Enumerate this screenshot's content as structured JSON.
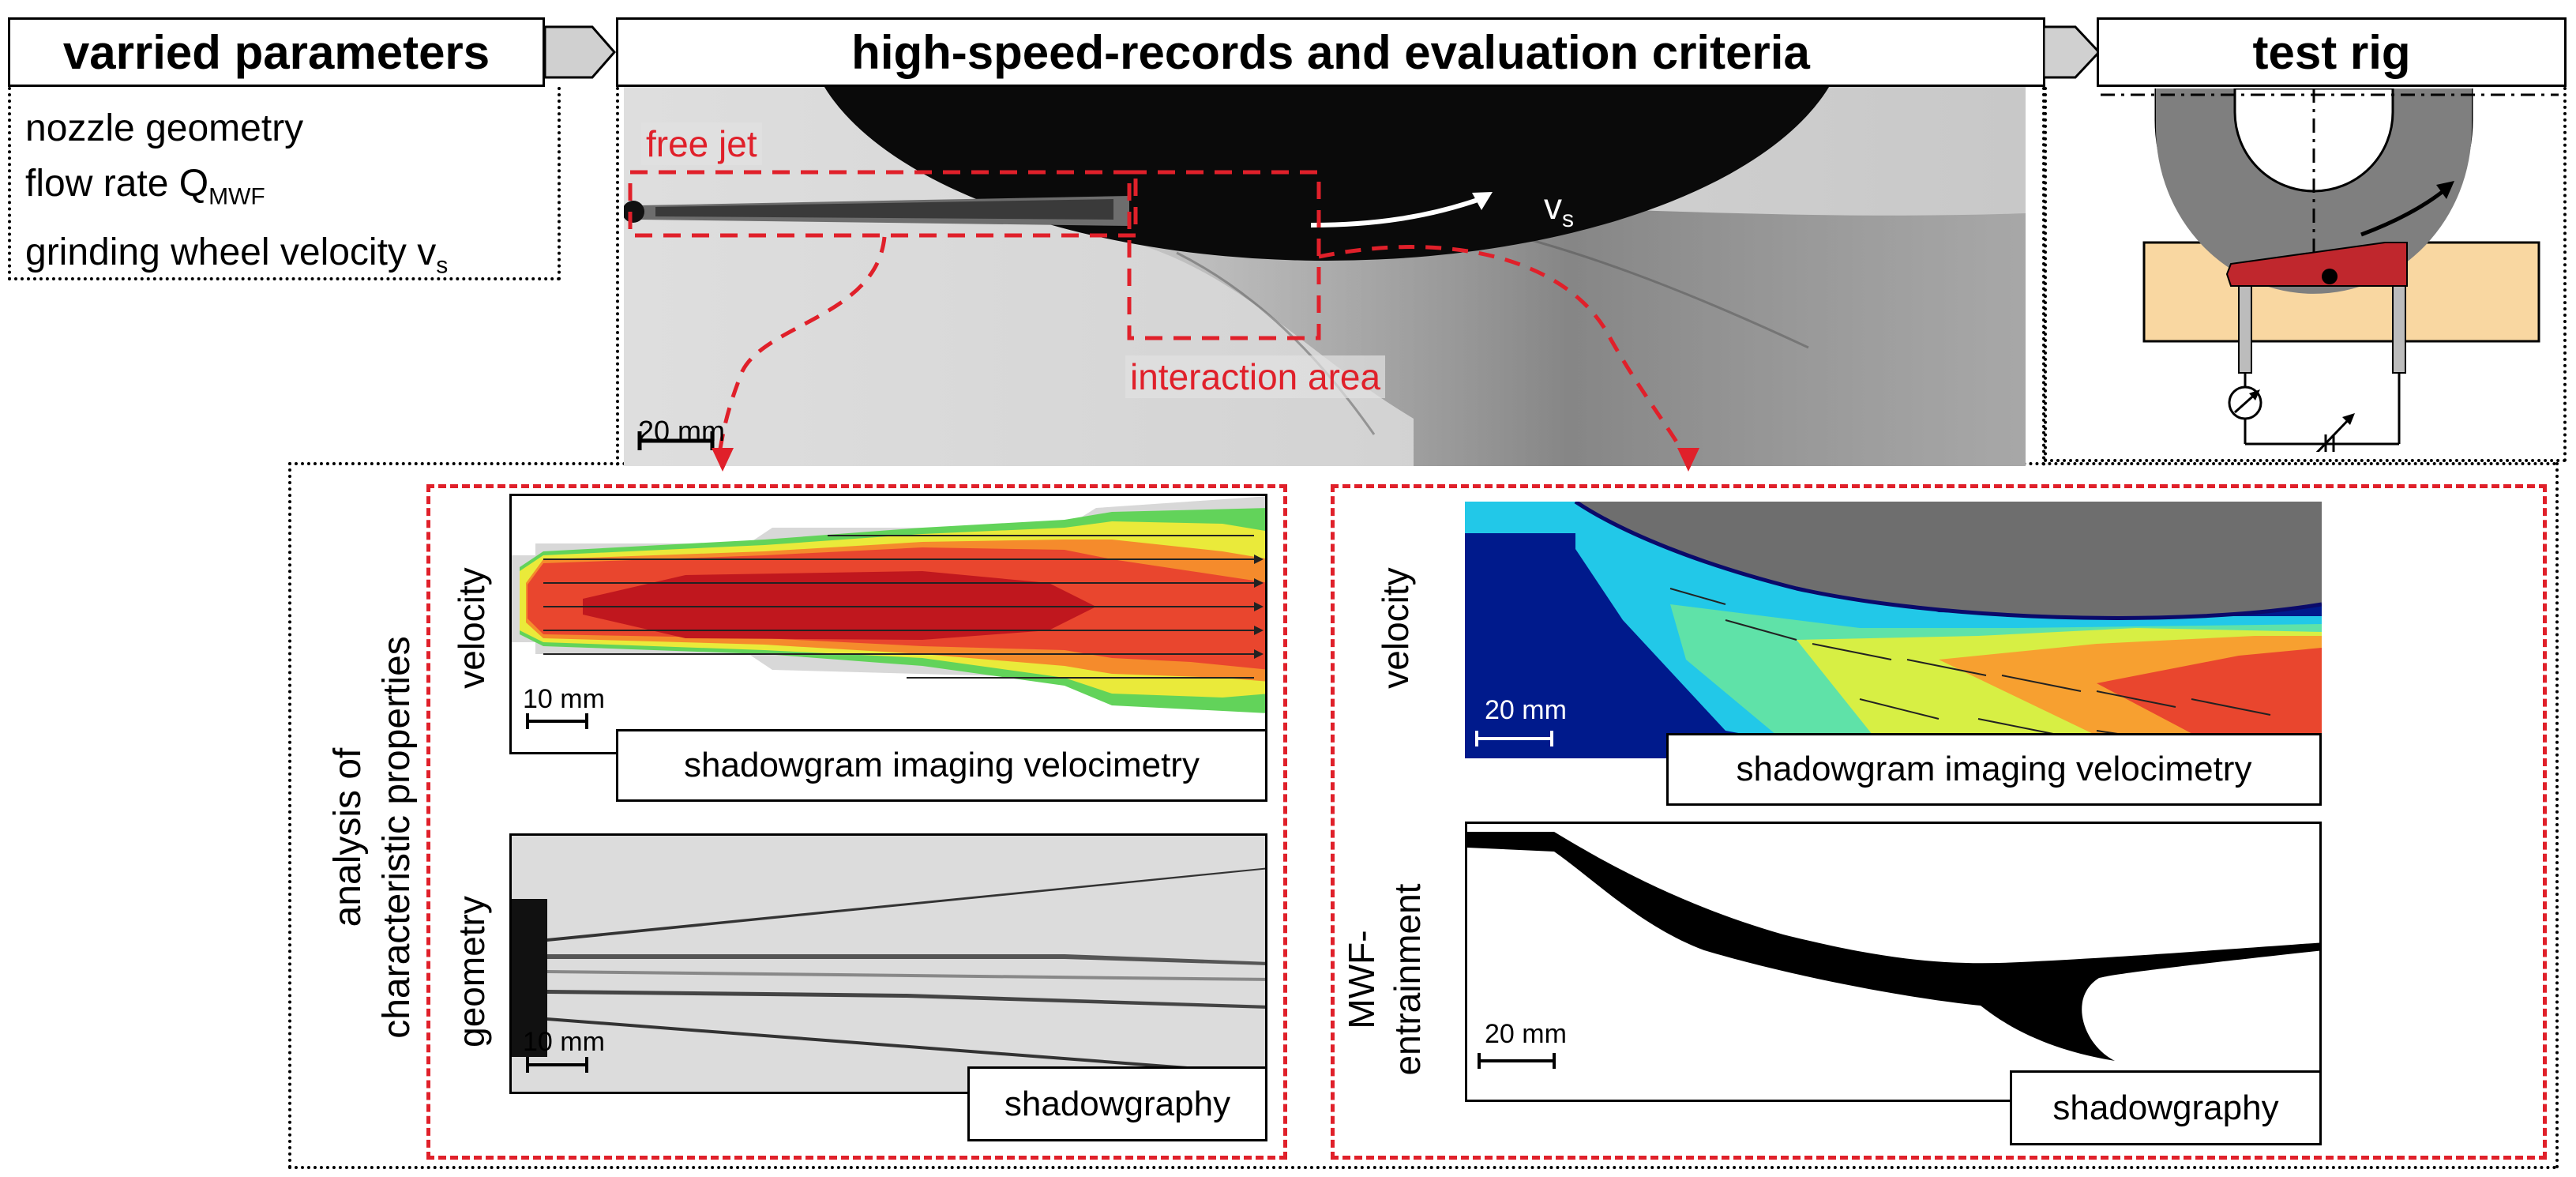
{
  "headers": {
    "varied": "varried parameters",
    "records": "high-speed-records and evaluation criteria",
    "rig": "test rig"
  },
  "parameters": [
    "nozzle geometry",
    "flow rate Q",
    "grinding wheel velocity v"
  ],
  "param_subscripts": {
    "flow": "MWF",
    "velocity": "s"
  },
  "top_image": {
    "free_jet": "free jet",
    "interaction": "interaction area",
    "velocity": "v",
    "velocity_sub": "s",
    "scale": "20 mm"
  },
  "side_title": [
    "analysis of",
    "characteristic properties"
  ],
  "left_panel": {
    "velocity_label": "velocity",
    "velocity_scale": "10 mm",
    "velocity_method": "shadowgram imaging velocimetry",
    "geometry_label": "geometry",
    "geometry_scale": "10 mm",
    "geometry_method": "shadowgraphy"
  },
  "right_panel": {
    "velocity_label": "velocity",
    "velocity_scale": "20 mm",
    "velocity_method": "shadowgram imaging velocimetry",
    "entrainment_label": [
      "MWF-",
      "entrainment"
    ],
    "entrainment_scale": "20 mm",
    "entrainment_method": "shadowgraphy"
  },
  "colors": {
    "accent_red": "#e0202a",
    "rig_wheel": "#7f7f7f",
    "rig_block": "#f9d7a1",
    "rig_red": "#c0272d"
  }
}
